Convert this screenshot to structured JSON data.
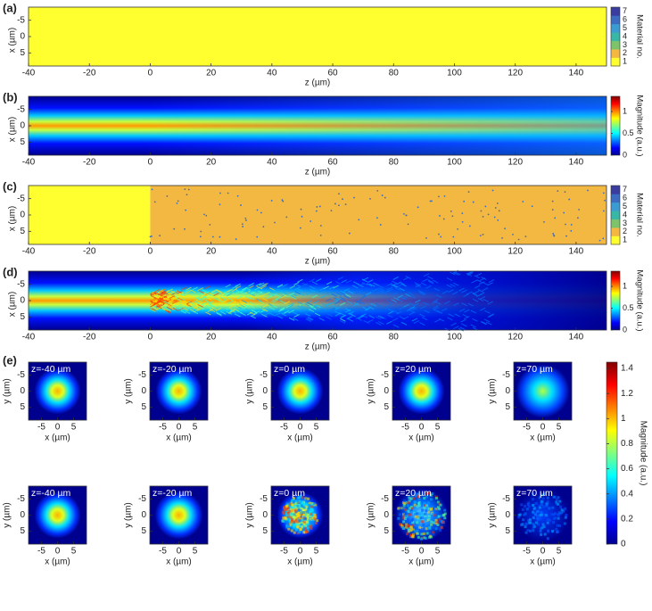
{
  "panels": [
    {
      "label": "(a)",
      "xlabel": "z (µm)",
      "ylabel": "x (µm)",
      "colorbar_label": "Material no."
    },
    {
      "label": "(b)",
      "xlabel": "z (µm)",
      "ylabel": "x (µm)",
      "colorbar_label": "Magnitude  (a.u.)"
    },
    {
      "label": "(c)",
      "xlabel": "z (µm)",
      "ylabel": "x (µm)",
      "colorbar_label": "Material no."
    },
    {
      "label": "(d)",
      "xlabel": "z (µm)",
      "ylabel": "x (µm)",
      "colorbar_label": "Magnitude  (a.u.)"
    }
  ],
  "z_axis": {
    "lim": [
      -40,
      150
    ],
    "ticks": [
      -40,
      -20,
      0,
      20,
      40,
      60,
      80,
      100,
      120,
      140
    ]
  },
  "x_axis": {
    "lim": [
      -9,
      9
    ],
    "ticks": [
      -5,
      0,
      5
    ]
  },
  "material_colorbar": {
    "lim": [
      0.5,
      7.5
    ],
    "ticks": [
      1,
      2,
      3,
      4,
      5,
      6,
      7
    ],
    "colors": [
      "#ffff30",
      "#f3b842",
      "#7cc36a",
      "#38b6a6",
      "#3b9bd3",
      "#3b6cc2",
      "#3a3d9f"
    ]
  },
  "magnitude_colorbar": {
    "lim": [
      0,
      1.35
    ],
    "ticks": [
      0,
      0.5,
      1
    ]
  },
  "panel_e": {
    "label": "(e)",
    "xlabel": "x (µm)",
    "ylabel": "y (µm)",
    "colorbar_label": "Magnitude (a.u.)",
    "lim": [
      -9,
      9
    ],
    "ticks": [
      -5,
      0,
      5
    ],
    "colorbar": {
      "lim": [
        0,
        1.45
      ],
      "ticks": [
        0,
        0.2,
        0.4,
        0.6,
        0.8,
        1,
        1.2,
        1.4
      ]
    },
    "rows": [
      [
        "z=-40 µm",
        "z=-20 µm",
        "z=0 µm",
        "z=20 µm",
        "z=70 µm"
      ],
      [
        "z=-40 µm",
        "z=-20 µm",
        "z=0 µm",
        "z=20 µm",
        "z=70 µm"
      ]
    ]
  }
}
